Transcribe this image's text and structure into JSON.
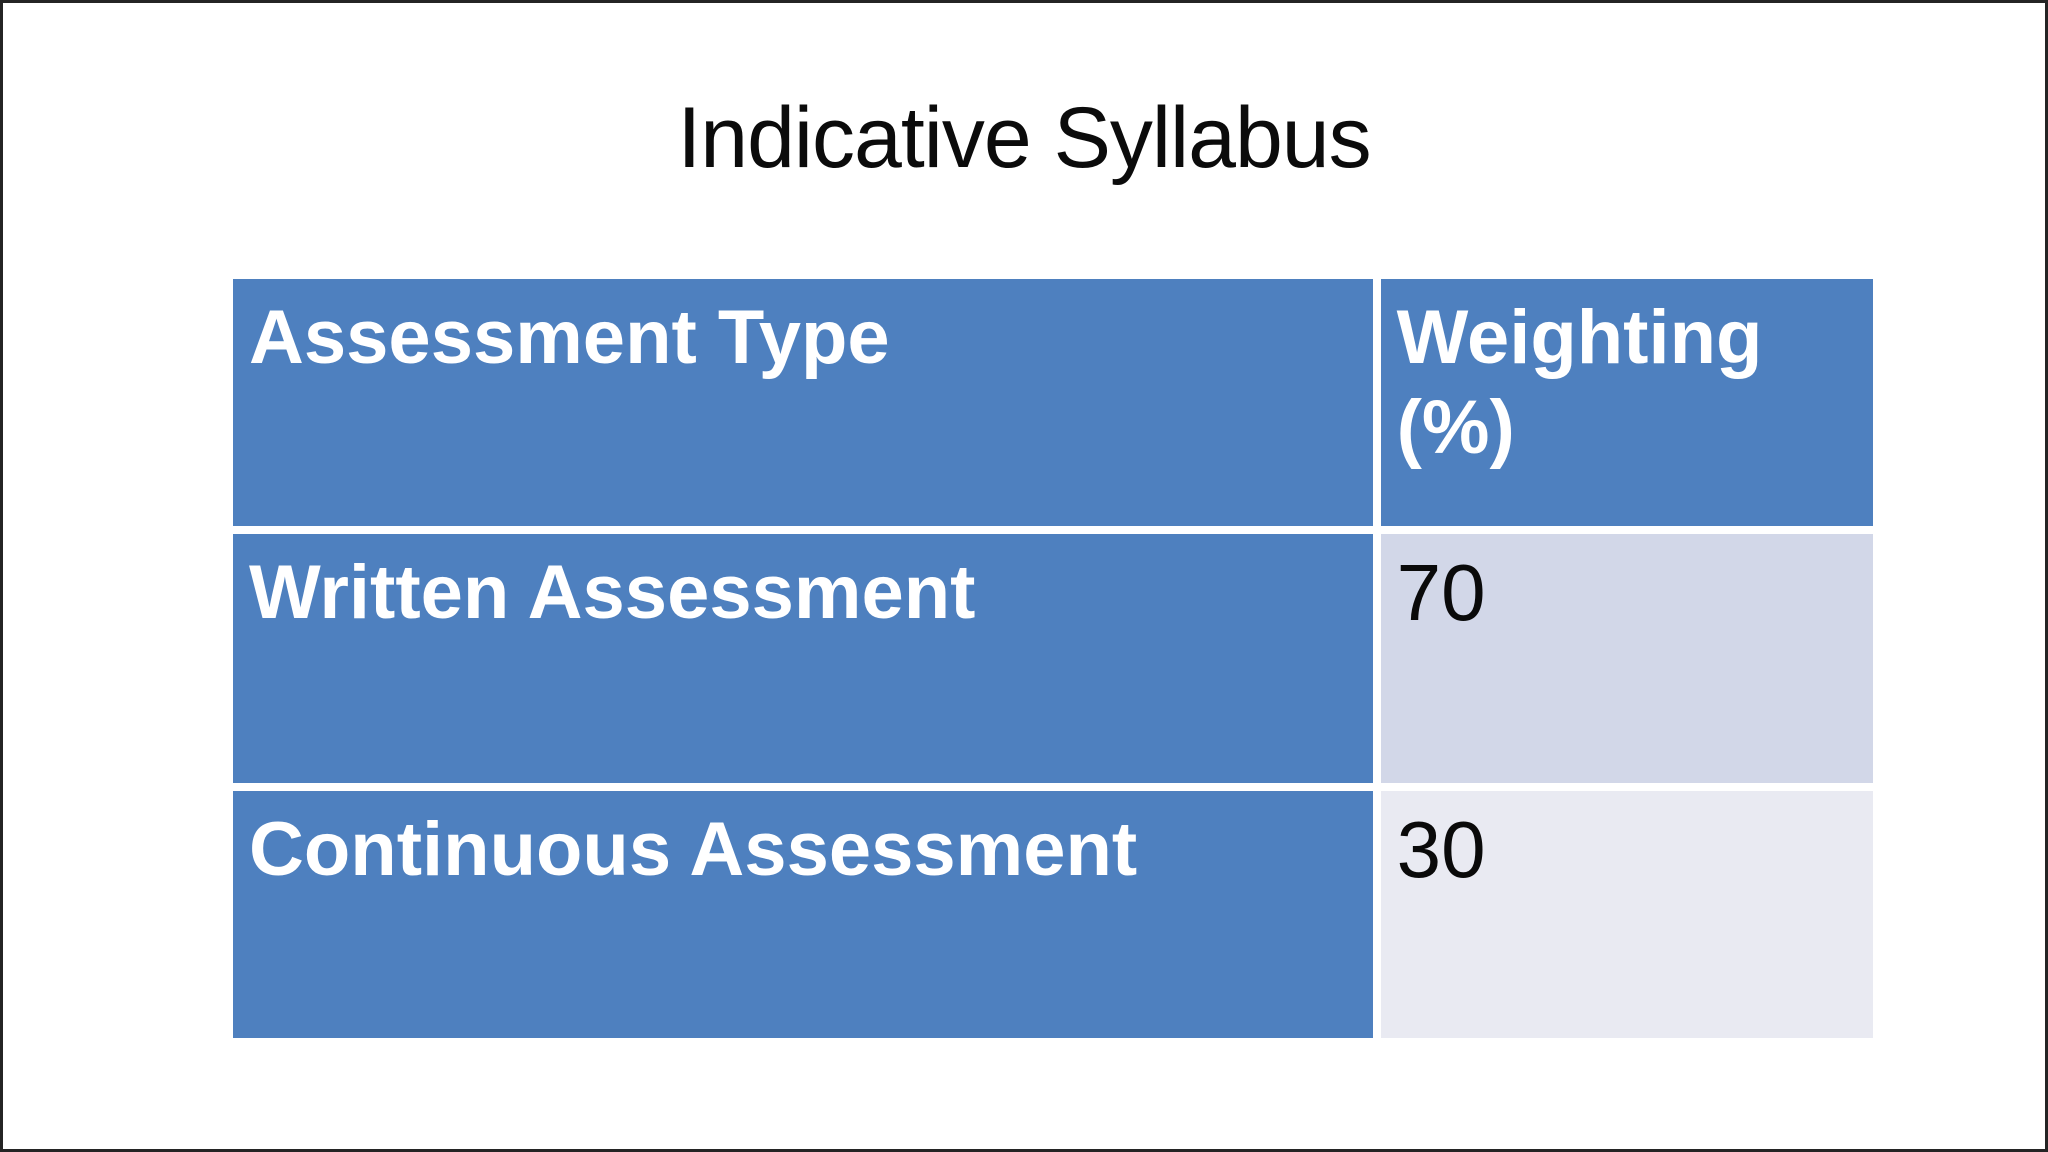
{
  "title": "Indicative Syllabus",
  "table": {
    "columns": [
      "Assessment Type",
      "Weighting (%)"
    ],
    "rows": [
      {
        "type": "Written Assessment",
        "weighting": "70"
      },
      {
        "type": "Continuous Assessment",
        "weighting": "30"
      }
    ]
  },
  "colors": {
    "accent_blue": "#4e80bf",
    "band_row1": "#d2d7e8",
    "band_row2": "#e9eaf2",
    "gridline_gap": "#ffffff",
    "frame_border": "#242424",
    "header_text": "#ffffff",
    "value_text": "#0a0a0a"
  }
}
